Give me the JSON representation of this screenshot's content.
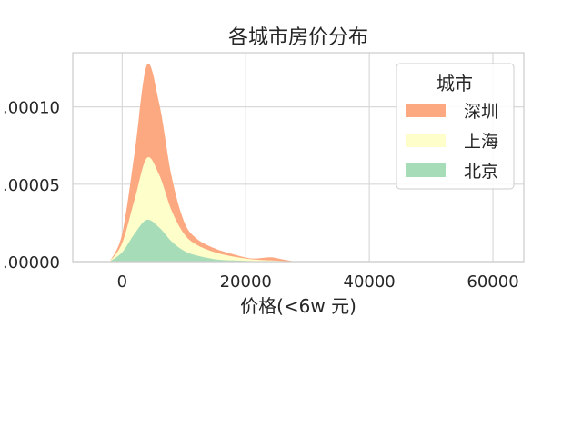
{
  "chart_data": {
    "type": "area",
    "title": "各城市房价分布",
    "xlabel": "价格(<6w 元)",
    "ylabel": "",
    "xlim": [
      -8000,
      65000
    ],
    "ylim": [
      0,
      0.000135
    ],
    "xticks": [
      0,
      20000,
      40000,
      60000
    ],
    "xtick_labels": [
      "0",
      "20000",
      "40000",
      "60000"
    ],
    "yticks": [
      0,
      5e-05,
      0.0001
    ],
    "ytick_labels": [
      ".00000",
      ".00005",
      ".00010"
    ],
    "grid": true,
    "stacked": true,
    "legend": {
      "title": "城市",
      "position": "top-right",
      "entries": [
        "深圳",
        "上海",
        "北京"
      ]
    },
    "x": [
      -2000,
      0,
      2000,
      4000,
      6000,
      8000,
      10000,
      12000,
      15000,
      18000,
      21000,
      24000,
      26000,
      28000
    ],
    "series": [
      {
        "name": "北京",
        "color": "#a6dcb8",
        "values": [
          0,
          6e-06,
          1.8e-05,
          2.7e-05,
          2.2e-05,
          1.3e-05,
          7e-06,
          4e-06,
          1.5e-06,
          7e-07,
          3e-07,
          2e-07,
          1e-07,
          0
        ]
      },
      {
        "name": "上海",
        "color": "#fefecb",
        "values": [
          0,
          6e-06,
          2.2e-05,
          4e-05,
          3.4e-05,
          2e-05,
          1.1e-05,
          7e-06,
          4.5e-06,
          2.5e-06,
          1.2e-06,
          6e-07,
          3e-07,
          0
        ]
      },
      {
        "name": "深圳",
        "color": "#fca880",
        "values": [
          0,
          6e-06,
          3e-05,
          6e-05,
          4.6e-05,
          2.2e-05,
          8e-06,
          4e-06,
          2.5e-06,
          1.5e-06,
          5e-07,
          2e-06,
          1e-06,
          0
        ]
      }
    ]
  }
}
